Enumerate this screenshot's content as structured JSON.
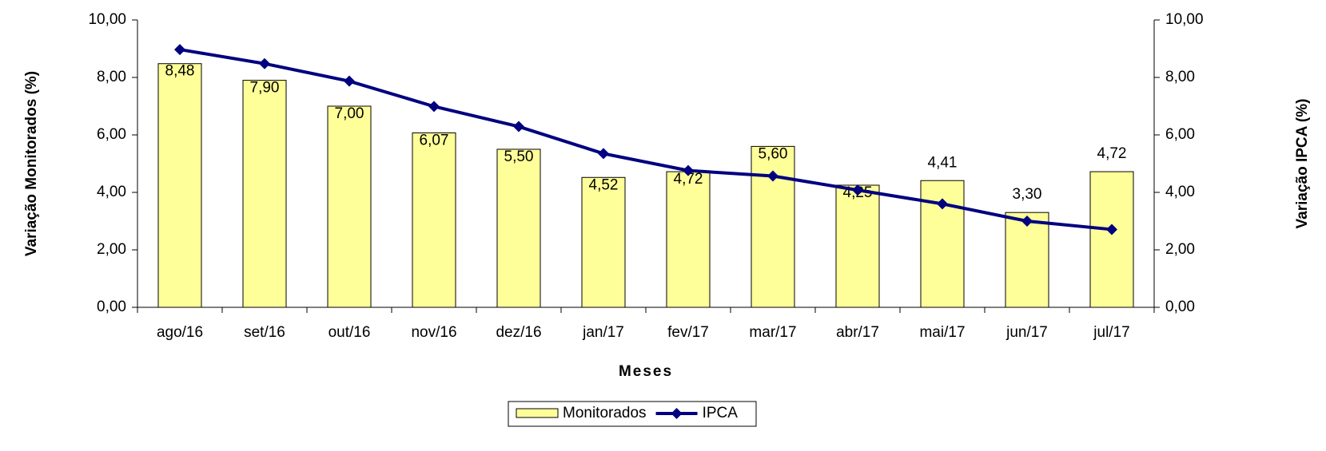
{
  "chart_data": {
    "type": "bar-line",
    "x_label": "Meses",
    "y_label": "Variação Monitorados (%)",
    "y2_label": "Variação IPCA (%)",
    "categories": [
      "ago/16",
      "set/16",
      "out/16",
      "nov/16",
      "dez/16",
      "jan/17",
      "fev/17",
      "mar/17",
      "abr/17",
      "mai/17",
      "jun/17",
      "jul/17"
    ],
    "series": [
      {
        "name": "Monitorados",
        "type": "bar",
        "color": "#ffff99",
        "axis": "y",
        "values": [
          8.48,
          7.9,
          7.0,
          6.07,
          5.5,
          4.52,
          4.72,
          5.6,
          4.25,
          4.41,
          3.3,
          4.72
        ],
        "value_labels": [
          "8,48",
          "7,90",
          "7,00",
          "6,07",
          "5,50",
          "4,52",
          "4,72",
          "5,60",
          "4,25",
          "4,41",
          "3,30",
          "4,72"
        ]
      },
      {
        "name": "IPCA",
        "type": "line",
        "color": "#000080",
        "axis": "y2",
        "values": [
          8.97,
          8.48,
          7.87,
          6.99,
          6.29,
          5.35,
          4.76,
          4.57,
          4.08,
          3.6,
          3.0,
          2.71
        ]
      }
    ],
    "ylim": [
      0,
      10
    ],
    "yticks": [
      {
        "value": 0,
        "label": "0,00"
      },
      {
        "value": 2,
        "label": "2,00"
      },
      {
        "value": 4,
        "label": "4,00"
      },
      {
        "value": 6,
        "label": "6,00"
      },
      {
        "value": 8,
        "label": "8,00"
      },
      {
        "value": 10,
        "label": "10,00"
      }
    ],
    "y2lim": [
      0,
      10
    ],
    "y2ticks": [
      {
        "value": 0,
        "label": "0,00"
      },
      {
        "value": 2,
        "label": "2,00"
      },
      {
        "value": 4,
        "label": "4,00"
      },
      {
        "value": 6,
        "label": "6,00"
      },
      {
        "value": 8,
        "label": "8,00"
      },
      {
        "value": 10,
        "label": "10,00"
      }
    ],
    "legend": "bottom"
  }
}
